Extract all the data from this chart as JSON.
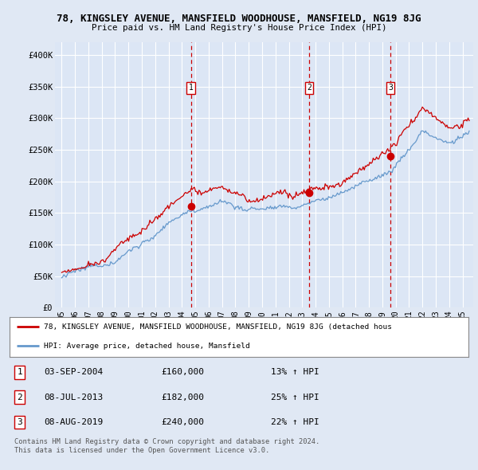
{
  "title": "78, KINGSLEY AVENUE, MANSFIELD WOODHOUSE, MANSFIELD, NG19 8JG",
  "subtitle": "Price paid vs. HM Land Registry's House Price Index (HPI)",
  "bg_color": "#e0e8f4",
  "plot_bg_color": "#dce6f5",
  "grid_color": "#ffffff",
  "red_color": "#cc0000",
  "blue_color": "#6699cc",
  "purchase_dates": [
    2004.67,
    2013.52,
    2019.6
  ],
  "purchase_prices": [
    160000,
    182000,
    240000
  ],
  "purchase_labels": [
    "1",
    "2",
    "3"
  ],
  "legend_entries": [
    "78, KINGSLEY AVENUE, MANSFIELD WOODHOUSE, MANSFIELD, NG19 8JG (detached hous",
    "HPI: Average price, detached house, Mansfield"
  ],
  "table_rows": [
    [
      "1",
      "03-SEP-2004",
      "£160,000",
      "13% ↑ HPI"
    ],
    [
      "2",
      "08-JUL-2013",
      "£182,000",
      "25% ↑ HPI"
    ],
    [
      "3",
      "08-AUG-2019",
      "£240,000",
      "22% ↑ HPI"
    ]
  ],
  "footnote1": "Contains HM Land Registry data © Crown copyright and database right 2024.",
  "footnote2": "This data is licensed under the Open Government Licence v3.0.",
  "ylim": [
    0,
    420000
  ],
  "yticks": [
    0,
    50000,
    100000,
    150000,
    200000,
    250000,
    300000,
    350000,
    400000
  ],
  "ytick_labels": [
    "£0",
    "£50K",
    "£100K",
    "£150K",
    "£200K",
    "£250K",
    "£300K",
    "£350K",
    "£400K"
  ],
  "xlim_start": 1994.5,
  "xlim_end": 2025.8,
  "xticks": [
    1995,
    1996,
    1997,
    1998,
    1999,
    2000,
    2001,
    2002,
    2003,
    2004,
    2005,
    2006,
    2007,
    2008,
    2009,
    2010,
    2011,
    2012,
    2013,
    2014,
    2015,
    2016,
    2017,
    2018,
    2019,
    2020,
    2021,
    2022,
    2023,
    2024,
    2025
  ]
}
